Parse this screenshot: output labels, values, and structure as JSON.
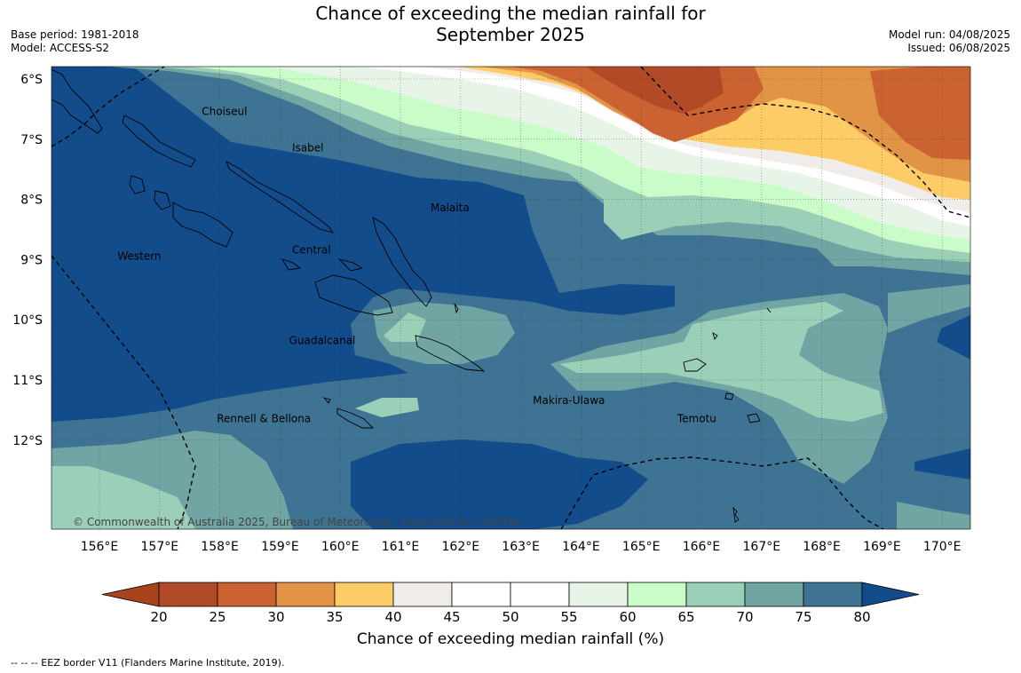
{
  "header": {
    "title_line1": "Chance of exceeding the median rainfall for",
    "title_line2": "September 2025",
    "base_period": "Base period: 1981-2018",
    "model": "Model: ACCESS-S2",
    "model_run": "Model run: 04/08/2025",
    "issued": "Issued: 06/08/2025"
  },
  "map": {
    "lon_ticks": [
      "156°E",
      "157°E",
      "158°E",
      "159°E",
      "160°E",
      "161°E",
      "162°E",
      "163°E",
      "164°E",
      "165°E",
      "166°E",
      "167°E",
      "168°E",
      "169°E",
      "170°E"
    ],
    "lat_ticks": [
      "6°S",
      "7°S",
      "8°S",
      "9°S",
      "10°S",
      "11°S",
      "12°S"
    ],
    "copyright": "© Commonwealth of Australia 2025, Bureau of Meteorology, supported by COSPPac",
    "province_labels": [
      {
        "name": "Choiseul",
        "lon": 157.7,
        "lat": -6.6
      },
      {
        "name": "Isabel",
        "lon": 159.2,
        "lat": -7.2
      },
      {
        "name": "Malaita",
        "lon": 161.5,
        "lat": -8.2
      },
      {
        "name": "Western",
        "lon": 156.3,
        "lat": -9.0
      },
      {
        "name": "Central",
        "lon": 159.2,
        "lat": -8.9
      },
      {
        "name": "Guadalcanal",
        "lon": 159.15,
        "lat": -10.4
      },
      {
        "name": "Makira-Ulawa",
        "lon": 163.2,
        "lat": -11.4
      },
      {
        "name": "Rennell & Bellona",
        "lon": 157.95,
        "lat": -11.7
      },
      {
        "name": "Temotu",
        "lon": 165.6,
        "lat": -11.7
      }
    ]
  },
  "colorbar": {
    "ticks": [
      "20",
      "25",
      "30",
      "35",
      "40",
      "45",
      "50",
      "55",
      "60",
      "65",
      "70",
      "75",
      "80"
    ],
    "label": "Chance of exceeding median rainfall (%)",
    "colors": [
      "#a7441e",
      "#b14a26",
      "#cb6231",
      "#e19346",
      "#fecc66",
      "#f0ece9",
      "#ffffff",
      "#ffffff",
      "#e9f4e8",
      "#c9fcc8",
      "#9bcfb7",
      "#70a5a4",
      "#3e7393",
      "#124c8b"
    ]
  },
  "footnote": "-- -- -- EEZ border V11 (Flanders Marine Institute, 2019)."
}
